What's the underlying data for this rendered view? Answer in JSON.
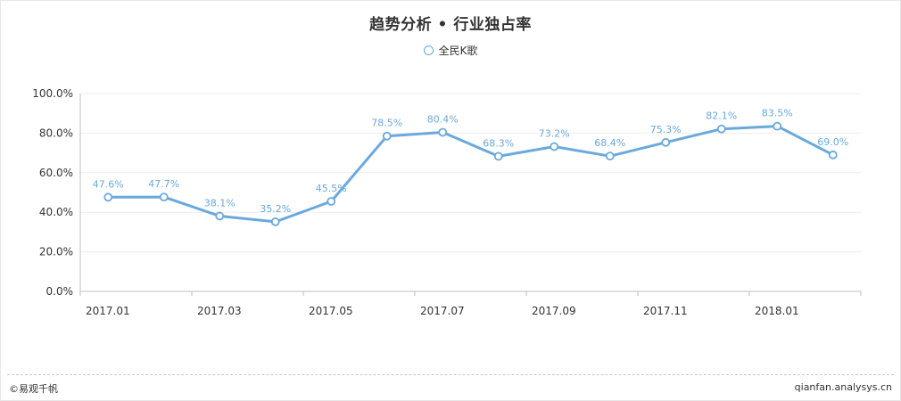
{
  "chart_data": {
    "type": "line",
    "title": "趋势分析 • 行业独占率",
    "legend_position": "top-center",
    "grid": true,
    "x": [
      "2017.01",
      "2017.02",
      "2017.03",
      "2017.04",
      "2017.05",
      "2017.06",
      "2017.07",
      "2017.08",
      "2017.09",
      "2017.10",
      "2017.11",
      "2017.12",
      "2018.01",
      "2018.02"
    ],
    "x_tick_labels": [
      "2017.01",
      "2017.03",
      "2017.05",
      "2017.07",
      "2017.09",
      "2017.11",
      "2018.01"
    ],
    "y_tick_labels": [
      "0.0%",
      "20.0%",
      "40.0%",
      "60.0%",
      "80.0%",
      "100.0%"
    ],
    "ylim": [
      0,
      100
    ],
    "series": [
      {
        "name": "全民K歌",
        "color": "#6aa9dc",
        "values": [
          47.6,
          47.7,
          38.1,
          35.2,
          45.5,
          78.5,
          80.4,
          68.3,
          73.2,
          68.4,
          75.3,
          82.1,
          83.5,
          69.0
        ],
        "labels": [
          "47.6%",
          "47.7%",
          "38.1%",
          "35.2%",
          "45.5%",
          "78.5%",
          "80.4%",
          "68.3%",
          "73.2%",
          "68.4%",
          "75.3%",
          "82.1%",
          "83.5%",
          "69.0%"
        ]
      }
    ]
  },
  "footer": {
    "left": "©易观千帆",
    "right": "qianfan.analysys.cn"
  }
}
